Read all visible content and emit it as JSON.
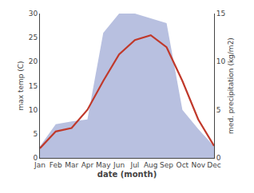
{
  "chart_data": {
    "type": "line",
    "categories": [
      "Jan",
      "Feb",
      "Mar",
      "Apr",
      "May",
      "Jun",
      "Jul",
      "Aug",
      "Sep",
      "Oct",
      "Nov",
      "Dec"
    ],
    "series": [
      {
        "type": "area",
        "color": "#b8c0e0",
        "axis": "y2",
        "values": [
          1.2,
          3.5,
          3.8,
          4.0,
          13.0,
          15.0,
          15.0,
          14.5,
          14.0,
          5.0,
          3.0,
          1.2
        ]
      },
      {
        "type": "line",
        "color": "#c0392b",
        "values": [
          2.0,
          5.5,
          6.2,
          10.0,
          16.0,
          21.5,
          24.5,
          25.5,
          23.0,
          16.0,
          8.0,
          2.5
        ]
      }
    ],
    "xlabel": "date (month)",
    "ylabel": "max temp (C)",
    "y2label": "med. precipitation (kg/m2)",
    "ylim": [
      0,
      30
    ],
    "yticks": [
      0,
      5,
      10,
      15,
      20,
      25,
      30
    ],
    "y2lim": [
      0,
      15
    ],
    "y2ticks": [
      0,
      5,
      10,
      15
    ],
    "grid": false
  }
}
